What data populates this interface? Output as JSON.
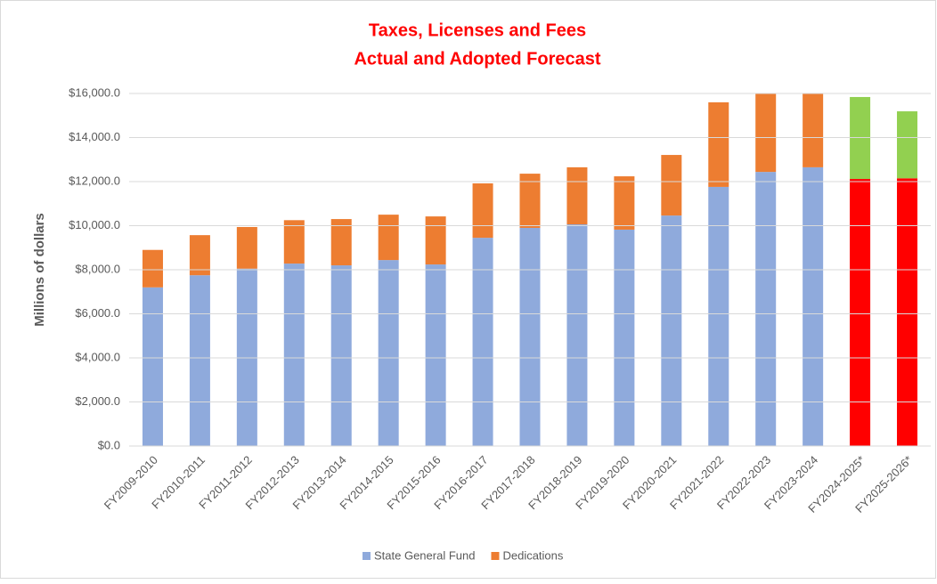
{
  "chart_data": {
    "type": "stacked_bar",
    "title": [
      "Taxes, Licenses and Fees",
      "Actual and Adopted Forecast"
    ],
    "y_label": "Millions of dollars",
    "categories": [
      "FY2009-2010",
      "FY2010-2011",
      "FY2011-2012",
      "FY2012-2013",
      "FY2013-2014",
      "FY2014-2015",
      "FY2015-2016",
      "FY2016-2017",
      "FY2017-2018",
      "FY2018-2019",
      "FY2019-2020",
      "FY2020-2021",
      "FY2021-2022",
      "FY2022-2023",
      "FY2023-2024",
      "FY2024-2025*",
      "FY2025-2026*"
    ],
    "series": [
      {
        "name": "State General Fund",
        "color": "#8faadc",
        "colors": [
          "#8faadc",
          "#8faadc",
          "#8faadc",
          "#8faadc",
          "#8faadc",
          "#8faadc",
          "#8faadc",
          "#8faadc",
          "#8faadc",
          "#8faadc",
          "#8faadc",
          "#8faadc",
          "#8faadc",
          "#8faadc",
          "#8faadc",
          "#ff0000",
          "#ff0000"
        ],
        "values": [
          7200,
          7750,
          8050,
          8280,
          8200,
          8440,
          8240,
          9450,
          9900,
          10060,
          9820,
          10460,
          11760,
          12440,
          12650,
          12120,
          12150
        ]
      },
      {
        "name": "Dedications",
        "color": "#ed7d31",
        "colors": [
          "#ed7d31",
          "#ed7d31",
          "#ed7d31",
          "#ed7d31",
          "#ed7d31",
          "#ed7d31",
          "#ed7d31",
          "#ed7d31",
          "#ed7d31",
          "#ed7d31",
          "#ed7d31",
          "#ed7d31",
          "#ed7d31",
          "#ed7d31",
          "#ed7d31",
          "#92d050",
          "#92d050"
        ],
        "values": [
          1700,
          1820,
          1890,
          1970,
          2100,
          2060,
          2180,
          2470,
          2460,
          2590,
          2420,
          2750,
          3840,
          4100,
          4000,
          3720,
          3040
        ]
      }
    ],
    "ylim": [
      0,
      16000
    ],
    "yticks": [
      {
        "value": 0,
        "label": "$0.0"
      },
      {
        "value": 2000,
        "label": "$2,000.0"
      },
      {
        "value": 4000,
        "label": "$4,000.0"
      },
      {
        "value": 6000,
        "label": "$6,000.0"
      },
      {
        "value": 8000,
        "label": "$8,000.0"
      },
      {
        "value": 10000,
        "label": "$10,000.0"
      },
      {
        "value": 12000,
        "label": "$12,000.0"
      },
      {
        "value": 14000,
        "label": "$14,000.0"
      },
      {
        "value": 16000,
        "label": "$16,000.0"
      }
    ],
    "grid": true,
    "legend": "bottom"
  }
}
